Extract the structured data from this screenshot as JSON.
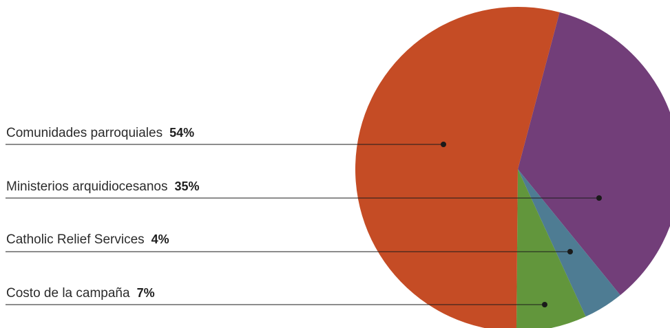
{
  "chart_data": {
    "type": "pie",
    "slices": [
      {
        "label": "Comunidades parroquiales",
        "value": 54,
        "value_label": "54%",
        "color": "#C54C25"
      },
      {
        "label": "Ministerios arquidiocesanos",
        "value": 35,
        "value_label": "35%",
        "color": "#723E79"
      },
      {
        "label": "Catholic Relief Services",
        "value": 4,
        "value_label": "4%",
        "color": "#4E7C93"
      },
      {
        "label": "Costo de la campaña",
        "value": 7,
        "value_label": "7%",
        "color": "#62963C"
      }
    ],
    "legend_position": "left",
    "leader_line_color": "#1a1a1a"
  }
}
